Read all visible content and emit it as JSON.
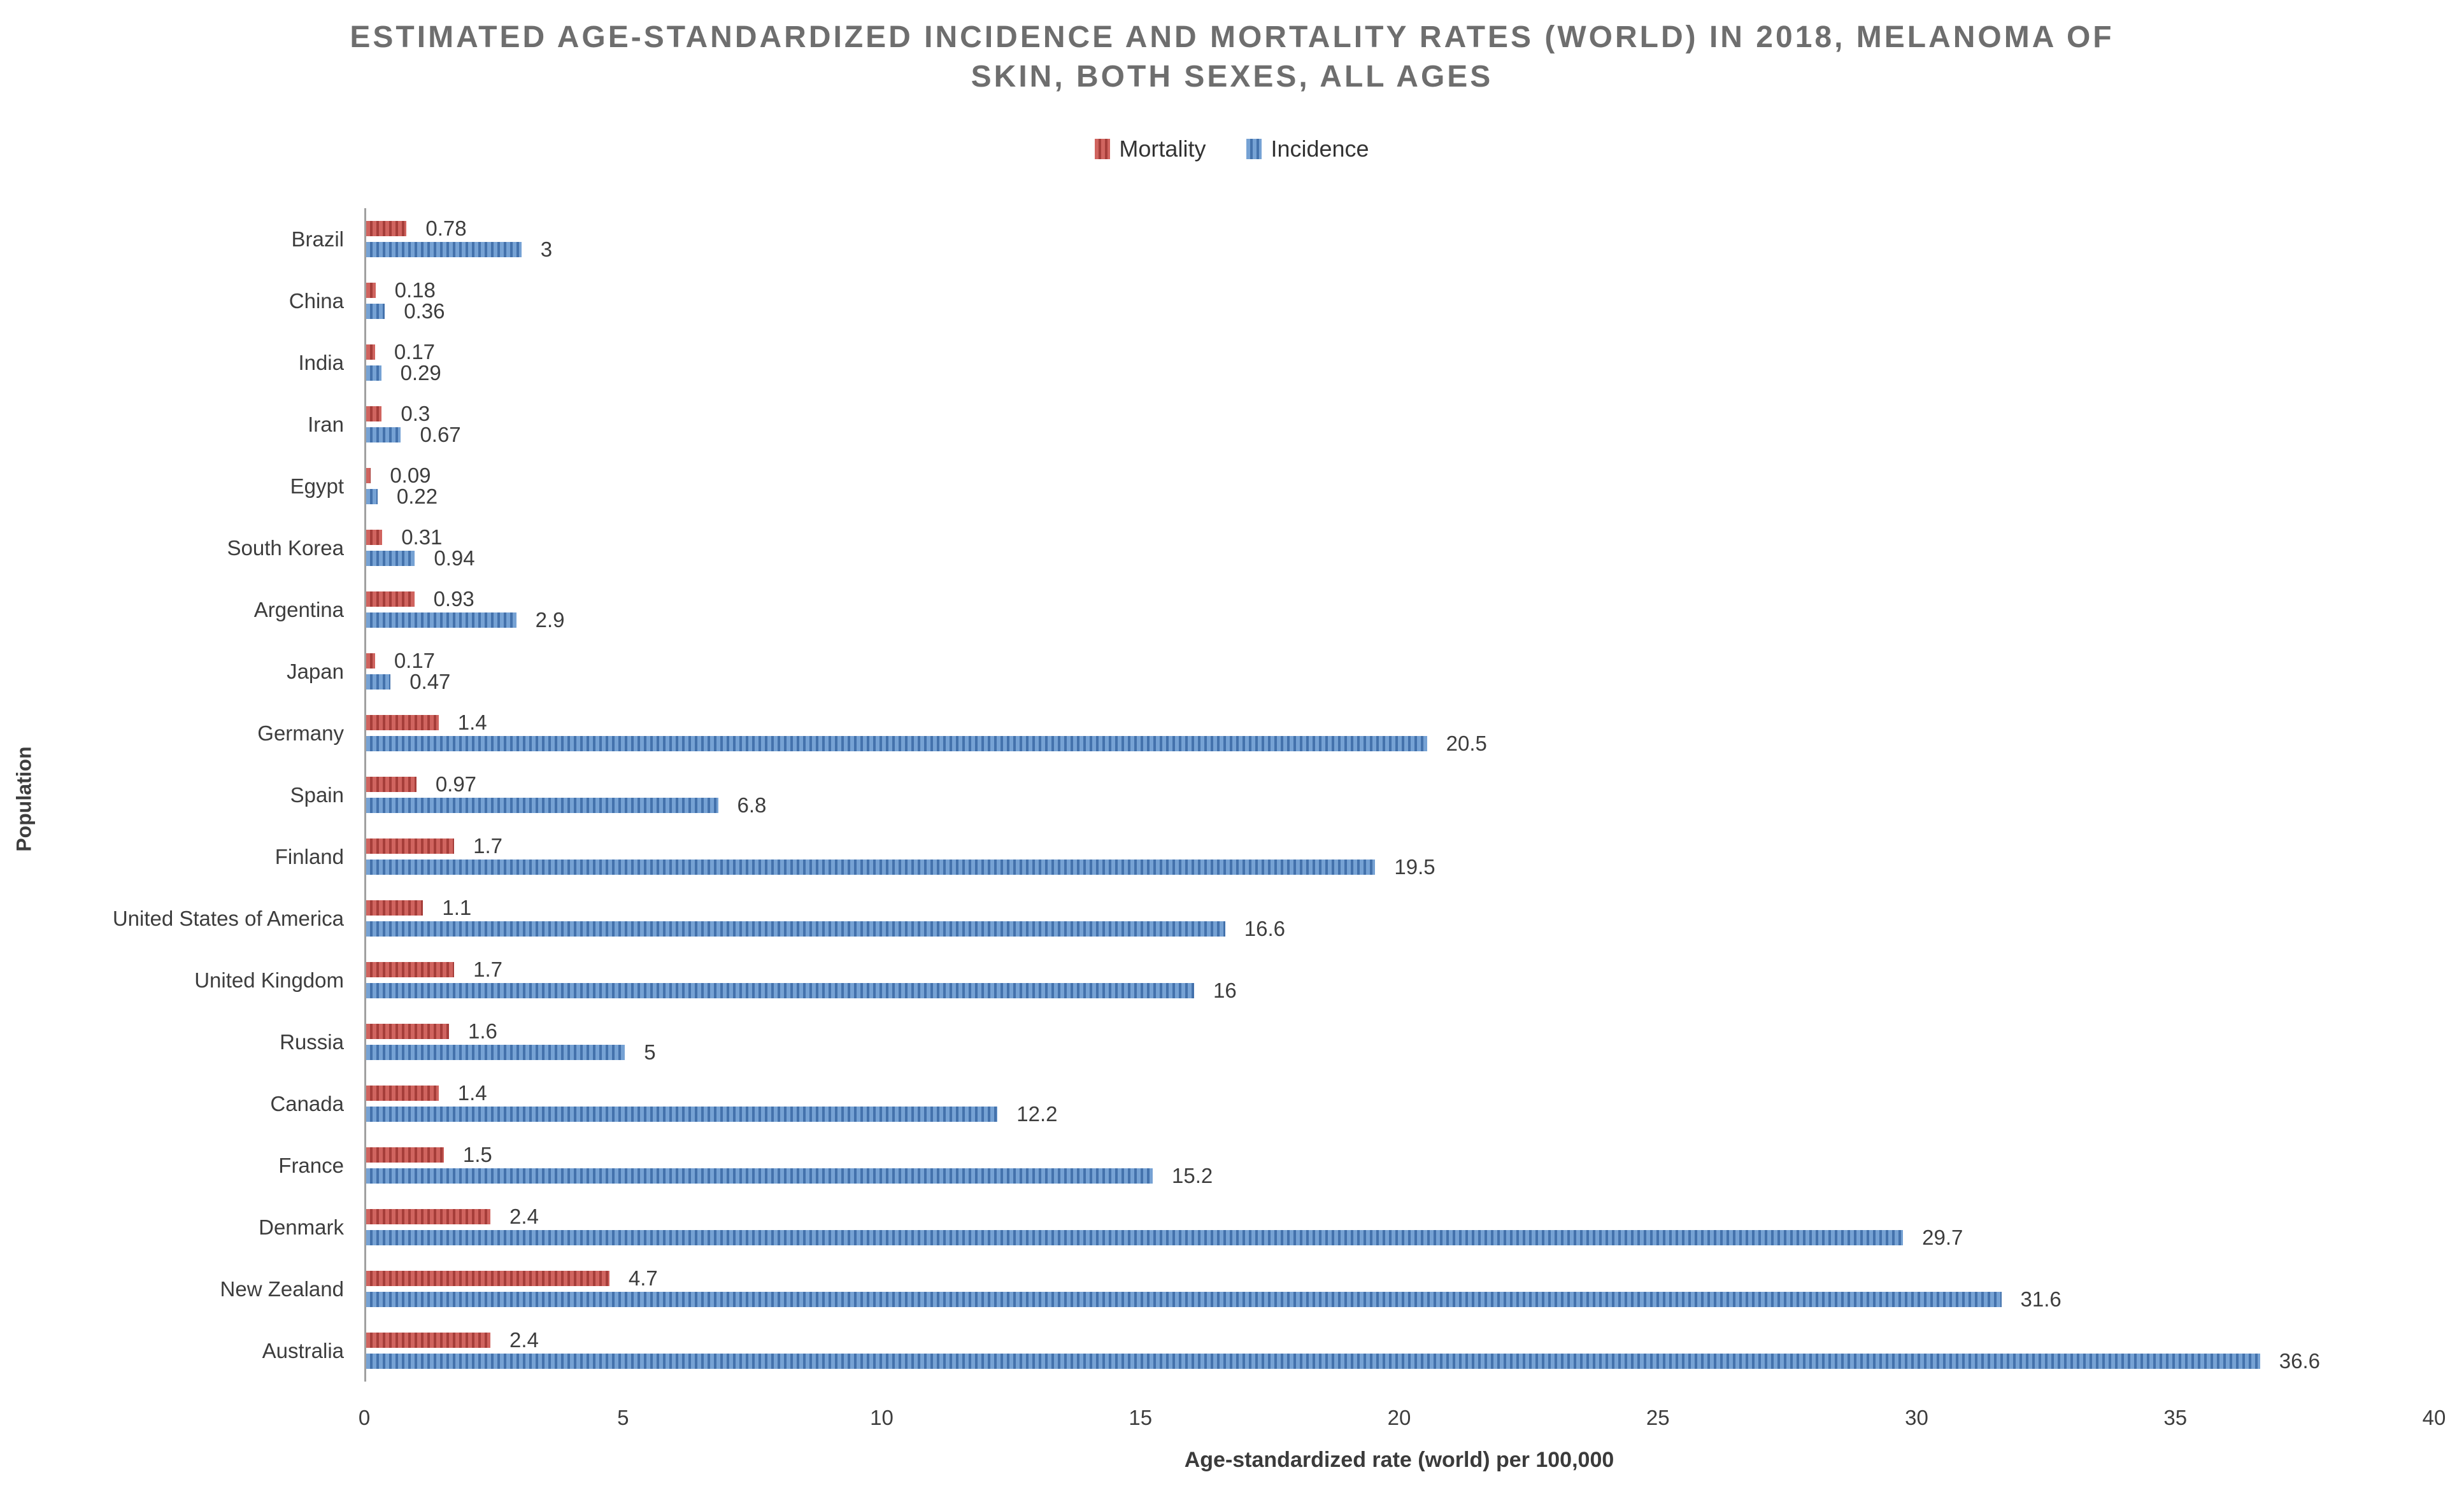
{
  "title": {
    "line1": "ESTIMATED AGE-STANDARDIZED INCIDENCE AND MORTALITY RATES (WORLD) IN 2018, MELANOMA OF",
    "line2": "SKIN, BOTH SEXES, ALL AGES"
  },
  "colors": {
    "title_text": "#6e6e6e",
    "label_text": "#3d3d3d",
    "axis_line": "#a0a0a0"
  },
  "chart_data": {
    "type": "bar",
    "orientation": "horizontal",
    "title": "ESTIMATED AGE-STANDARDIZED INCIDENCE AND MORTALITY RATES (WORLD) IN 2018, MELANOMA OF SKIN, BOTH SEXES, ALL AGES",
    "xlabel": "Age-standardized rate (world) per 100,000",
    "ylabel": "Population",
    "xlim": [
      0,
      40
    ],
    "xticks": [
      0,
      5,
      10,
      15,
      20,
      25,
      30,
      35,
      40
    ],
    "grid": false,
    "legend_position": "top",
    "categories": [
      "Brazil",
      "China",
      "India",
      "Iran",
      "Egypt",
      "South Korea",
      "Argentina",
      "Japan",
      "Germany",
      "Spain",
      "Finland",
      "United States of America",
      "United Kingdom",
      "Russia",
      "Canada",
      "France",
      "Denmark",
      "New Zealand",
      "Australia"
    ],
    "series": [
      {
        "name": "Mortality",
        "color": "#c0504d",
        "pattern_light": "#d0645f",
        "pattern_dark": "#a63e3a",
        "values": [
          0.78,
          0.18,
          0.17,
          0.3,
          0.09,
          0.31,
          0.93,
          0.17,
          1.4,
          0.97,
          1.7,
          1.1,
          1.7,
          1.6,
          1.4,
          1.5,
          2.4,
          4.7,
          2.4
        ]
      },
      {
        "name": "Incidence",
        "color": "#4f81bd",
        "pattern_light": "#76a2d4",
        "pattern_dark": "#4472ac",
        "values": [
          3,
          0.36,
          0.29,
          0.67,
          0.22,
          0.94,
          2.9,
          0.47,
          20.5,
          6.8,
          19.5,
          16.6,
          16,
          5,
          12.2,
          15.2,
          29.7,
          31.6,
          36.6
        ]
      }
    ]
  }
}
